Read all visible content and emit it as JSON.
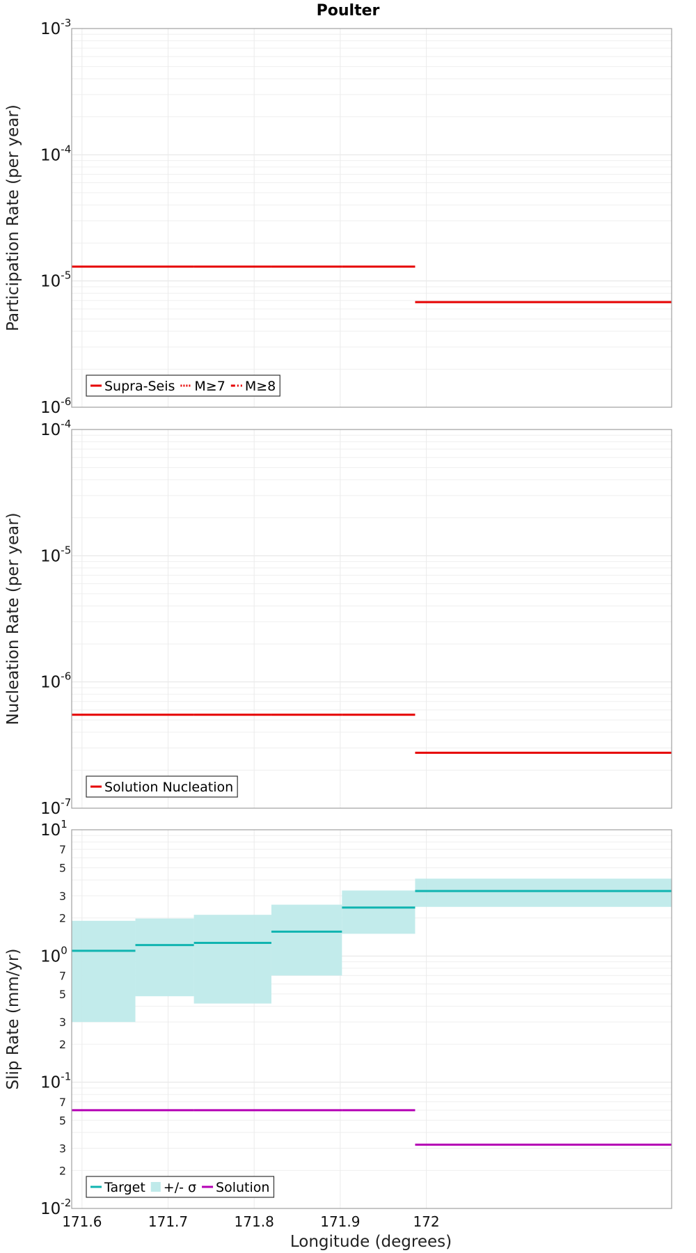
{
  "chart_data": {
    "title": "Poulter",
    "xlabel": "Longitude (degrees)",
    "xlim": [
      171.588,
      172.285
    ],
    "xticks": [
      "171.6",
      "171.7",
      "171.8",
      "171.9",
      "172"
    ],
    "xtick_values": [
      171.6,
      171.7,
      171.8,
      171.9,
      172.0
    ],
    "panels": [
      {
        "type": "line",
        "ylabel": "Participation Rate (per year)",
        "yscale": "log",
        "ylim": [
          1e-06,
          0.001
        ],
        "major_ticks": [
          {
            "value": 1e-06,
            "base": "10",
            "exp": "-6"
          },
          {
            "value": 1e-05,
            "base": "10",
            "exp": "-5"
          },
          {
            "value": 0.0001,
            "base": "10",
            "exp": "-4"
          },
          {
            "value": 0.001,
            "base": "10",
            "exp": "-3"
          }
        ],
        "minor_labels": [],
        "legend": {
          "placement": "bottom-left",
          "entries": [
            {
              "label": "Supra-Seis",
              "style": "solid",
              "color": "#e60000"
            },
            {
              "label": "M≥7",
              "style": "dotted",
              "color": "#e60000"
            },
            {
              "label": "M≥8",
              "style": "dashdot",
              "color": "#e60000"
            }
          ]
        },
        "series": [
          {
            "name": "Supra-Seis",
            "color": "#e60000",
            "segments": [
              {
                "x0": 171.588,
                "x1": 171.662,
                "y": 1.3e-05
              },
              {
                "x0": 171.662,
                "x1": 171.73,
                "y": 1.3e-05
              },
              {
                "x0": 171.73,
                "x1": 171.82,
                "y": 1.3e-05
              },
              {
                "x0": 171.82,
                "x1": 171.902,
                "y": 1.3e-05
              },
              {
                "x0": 171.902,
                "x1": 171.987,
                "y": 1.3e-05
              },
              {
                "x0": 171.987,
                "x1": 172.285,
                "y": 6.8e-06
              }
            ]
          }
        ]
      },
      {
        "type": "line",
        "ylabel": "Nucleation Rate (per year)",
        "yscale": "log",
        "ylim": [
          1e-07,
          0.0001
        ],
        "major_ticks": [
          {
            "value": 1e-07,
            "base": "10",
            "exp": "-7"
          },
          {
            "value": 1e-06,
            "base": "10",
            "exp": "-6"
          },
          {
            "value": 1e-05,
            "base": "10",
            "exp": "-5"
          },
          {
            "value": 0.0001,
            "base": "10",
            "exp": "-4"
          }
        ],
        "minor_labels": [],
        "legend": {
          "placement": "bottom-left",
          "entries": [
            {
              "label": "Solution Nucleation",
              "style": "solid",
              "color": "#e60000"
            }
          ]
        },
        "series": [
          {
            "name": "Solution Nucleation",
            "color": "#e60000",
            "segments": [
              {
                "x0": 171.588,
                "x1": 171.662,
                "y": 5.5e-07
              },
              {
                "x0": 171.662,
                "x1": 171.73,
                "y": 5.5e-07
              },
              {
                "x0": 171.73,
                "x1": 171.82,
                "y": 5.5e-07
              },
              {
                "x0": 171.82,
                "x1": 171.902,
                "y": 5.5e-07
              },
              {
                "x0": 171.902,
                "x1": 171.987,
                "y": 5.5e-07
              },
              {
                "x0": 171.987,
                "x1": 172.285,
                "y": 2.75e-07
              }
            ]
          }
        ]
      },
      {
        "type": "line",
        "ylabel": "Slip Rate (mm/yr)",
        "yscale": "log",
        "ylim": [
          0.01,
          10
        ],
        "major_ticks": [
          {
            "value": 0.01,
            "base": "10",
            "exp": "-2"
          },
          {
            "value": 0.1,
            "base": "10",
            "exp": "-1"
          },
          {
            "value": 1,
            "base": "10",
            "exp": "0"
          },
          {
            "value": 10,
            "base": "10",
            "exp": "1"
          }
        ],
        "minor_labels": [
          {
            "value": 0.02,
            "label": "2"
          },
          {
            "value": 0.03,
            "label": "3"
          },
          {
            "value": 0.05,
            "label": "5"
          },
          {
            "value": 0.07,
            "label": "7"
          },
          {
            "value": 0.2,
            "label": "2"
          },
          {
            "value": 0.3,
            "label": "3"
          },
          {
            "value": 0.5,
            "label": "5"
          },
          {
            "value": 0.7,
            "label": "7"
          },
          {
            "value": 2,
            "label": "2"
          },
          {
            "value": 3,
            "label": "3"
          },
          {
            "value": 5,
            "label": "5"
          },
          {
            "value": 7,
            "label": "7"
          }
        ],
        "legend": {
          "placement": "bottom-left",
          "entries": [
            {
              "label": "Target",
              "style": "solid",
              "color": "#10b4b0"
            },
            {
              "label": "+/- σ",
              "style": "box",
              "color": "#bfeaea"
            },
            {
              "label": "Solution",
              "style": "solid",
              "color": "#b400b4"
            }
          ]
        },
        "bands": [
          {
            "name": "+/- σ",
            "color": "#bfeaea",
            "segments": [
              {
                "x0": 171.588,
                "x1": 171.662,
                "low": 0.3,
                "high": 1.9
              },
              {
                "x0": 171.662,
                "x1": 171.73,
                "low": 0.48,
                "high": 1.98
              },
              {
                "x0": 171.73,
                "x1": 171.82,
                "low": 0.42,
                "high": 2.12
              },
              {
                "x0": 171.82,
                "x1": 171.902,
                "low": 0.7,
                "high": 2.55
              },
              {
                "x0": 171.902,
                "x1": 171.987,
                "low": 1.5,
                "high": 3.3
              },
              {
                "x0": 171.987,
                "x1": 172.285,
                "low": 2.45,
                "high": 4.1
              }
            ]
          }
        ],
        "series": [
          {
            "name": "Target",
            "color": "#10b4b0",
            "segments": [
              {
                "x0": 171.588,
                "x1": 171.662,
                "y": 1.1
              },
              {
                "x0": 171.662,
                "x1": 171.73,
                "y": 1.22
              },
              {
                "x0": 171.73,
                "x1": 171.82,
                "y": 1.27
              },
              {
                "x0": 171.82,
                "x1": 171.902,
                "y": 1.56
              },
              {
                "x0": 171.902,
                "x1": 171.987,
                "y": 2.42
              },
              {
                "x0": 171.987,
                "x1": 172.285,
                "y": 3.27
              }
            ]
          },
          {
            "name": "Solution",
            "color": "#b400b4",
            "segments": [
              {
                "x0": 171.588,
                "x1": 171.662,
                "y": 0.06
              },
              {
                "x0": 171.662,
                "x1": 171.73,
                "y": 0.06
              },
              {
                "x0": 171.73,
                "x1": 171.82,
                "y": 0.06
              },
              {
                "x0": 171.82,
                "x1": 171.902,
                "y": 0.06
              },
              {
                "x0": 171.902,
                "x1": 171.987,
                "y": 0.06
              },
              {
                "x0": 171.987,
                "x1": 172.285,
                "y": 0.032
              }
            ]
          }
        ]
      }
    ]
  }
}
